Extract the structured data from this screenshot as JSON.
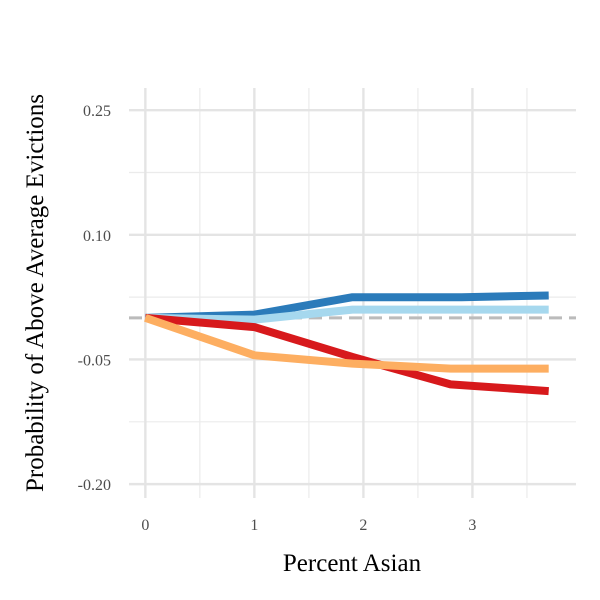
{
  "chart_data": {
    "type": "line",
    "xlabel": "Percent Asian",
    "ylabel": "Probability of Above Average Evictions",
    "xlim": [
      -0.15,
      3.95
    ],
    "ylim": [
      -0.2167,
      0.2767
    ],
    "x_ticks": [
      0,
      1,
      2,
      3
    ],
    "x_tick_labels": [
      "0",
      "1",
      "2",
      "3"
    ],
    "y_ticks": [
      -0.2,
      -0.05,
      0.1,
      0.25
    ],
    "y_tick_labels": [
      "-0.20",
      "-0.05",
      "0.10",
      "0.25"
    ],
    "grid": true,
    "reference_line": {
      "y": 0,
      "style": "dashed",
      "color": "#bbbbbb"
    },
    "series": [
      {
        "color": "#2b7bba",
        "x": [
          0,
          1,
          1.9,
          2.9,
          3.7
        ],
        "y": [
          0,
          0.004,
          0.025,
          0.025,
          0.027
        ]
      },
      {
        "color": "#a6d8ee",
        "x": [
          0,
          1,
          1.9,
          2.9,
          3.7
        ],
        "y": [
          0,
          -0.002,
          0.01,
          0.01,
          0.01
        ]
      },
      {
        "color": "#d7191c",
        "x": [
          0,
          1,
          1.9,
          2.8,
          3.7
        ],
        "y": [
          0,
          -0.011,
          -0.047,
          -0.08,
          -0.088
        ]
      },
      {
        "color": "#fdae61",
        "x": [
          0,
          1,
          1.9,
          2.8,
          3.7
        ],
        "y": [
          0,
          -0.045,
          -0.055,
          -0.061,
          -0.061
        ]
      }
    ]
  }
}
